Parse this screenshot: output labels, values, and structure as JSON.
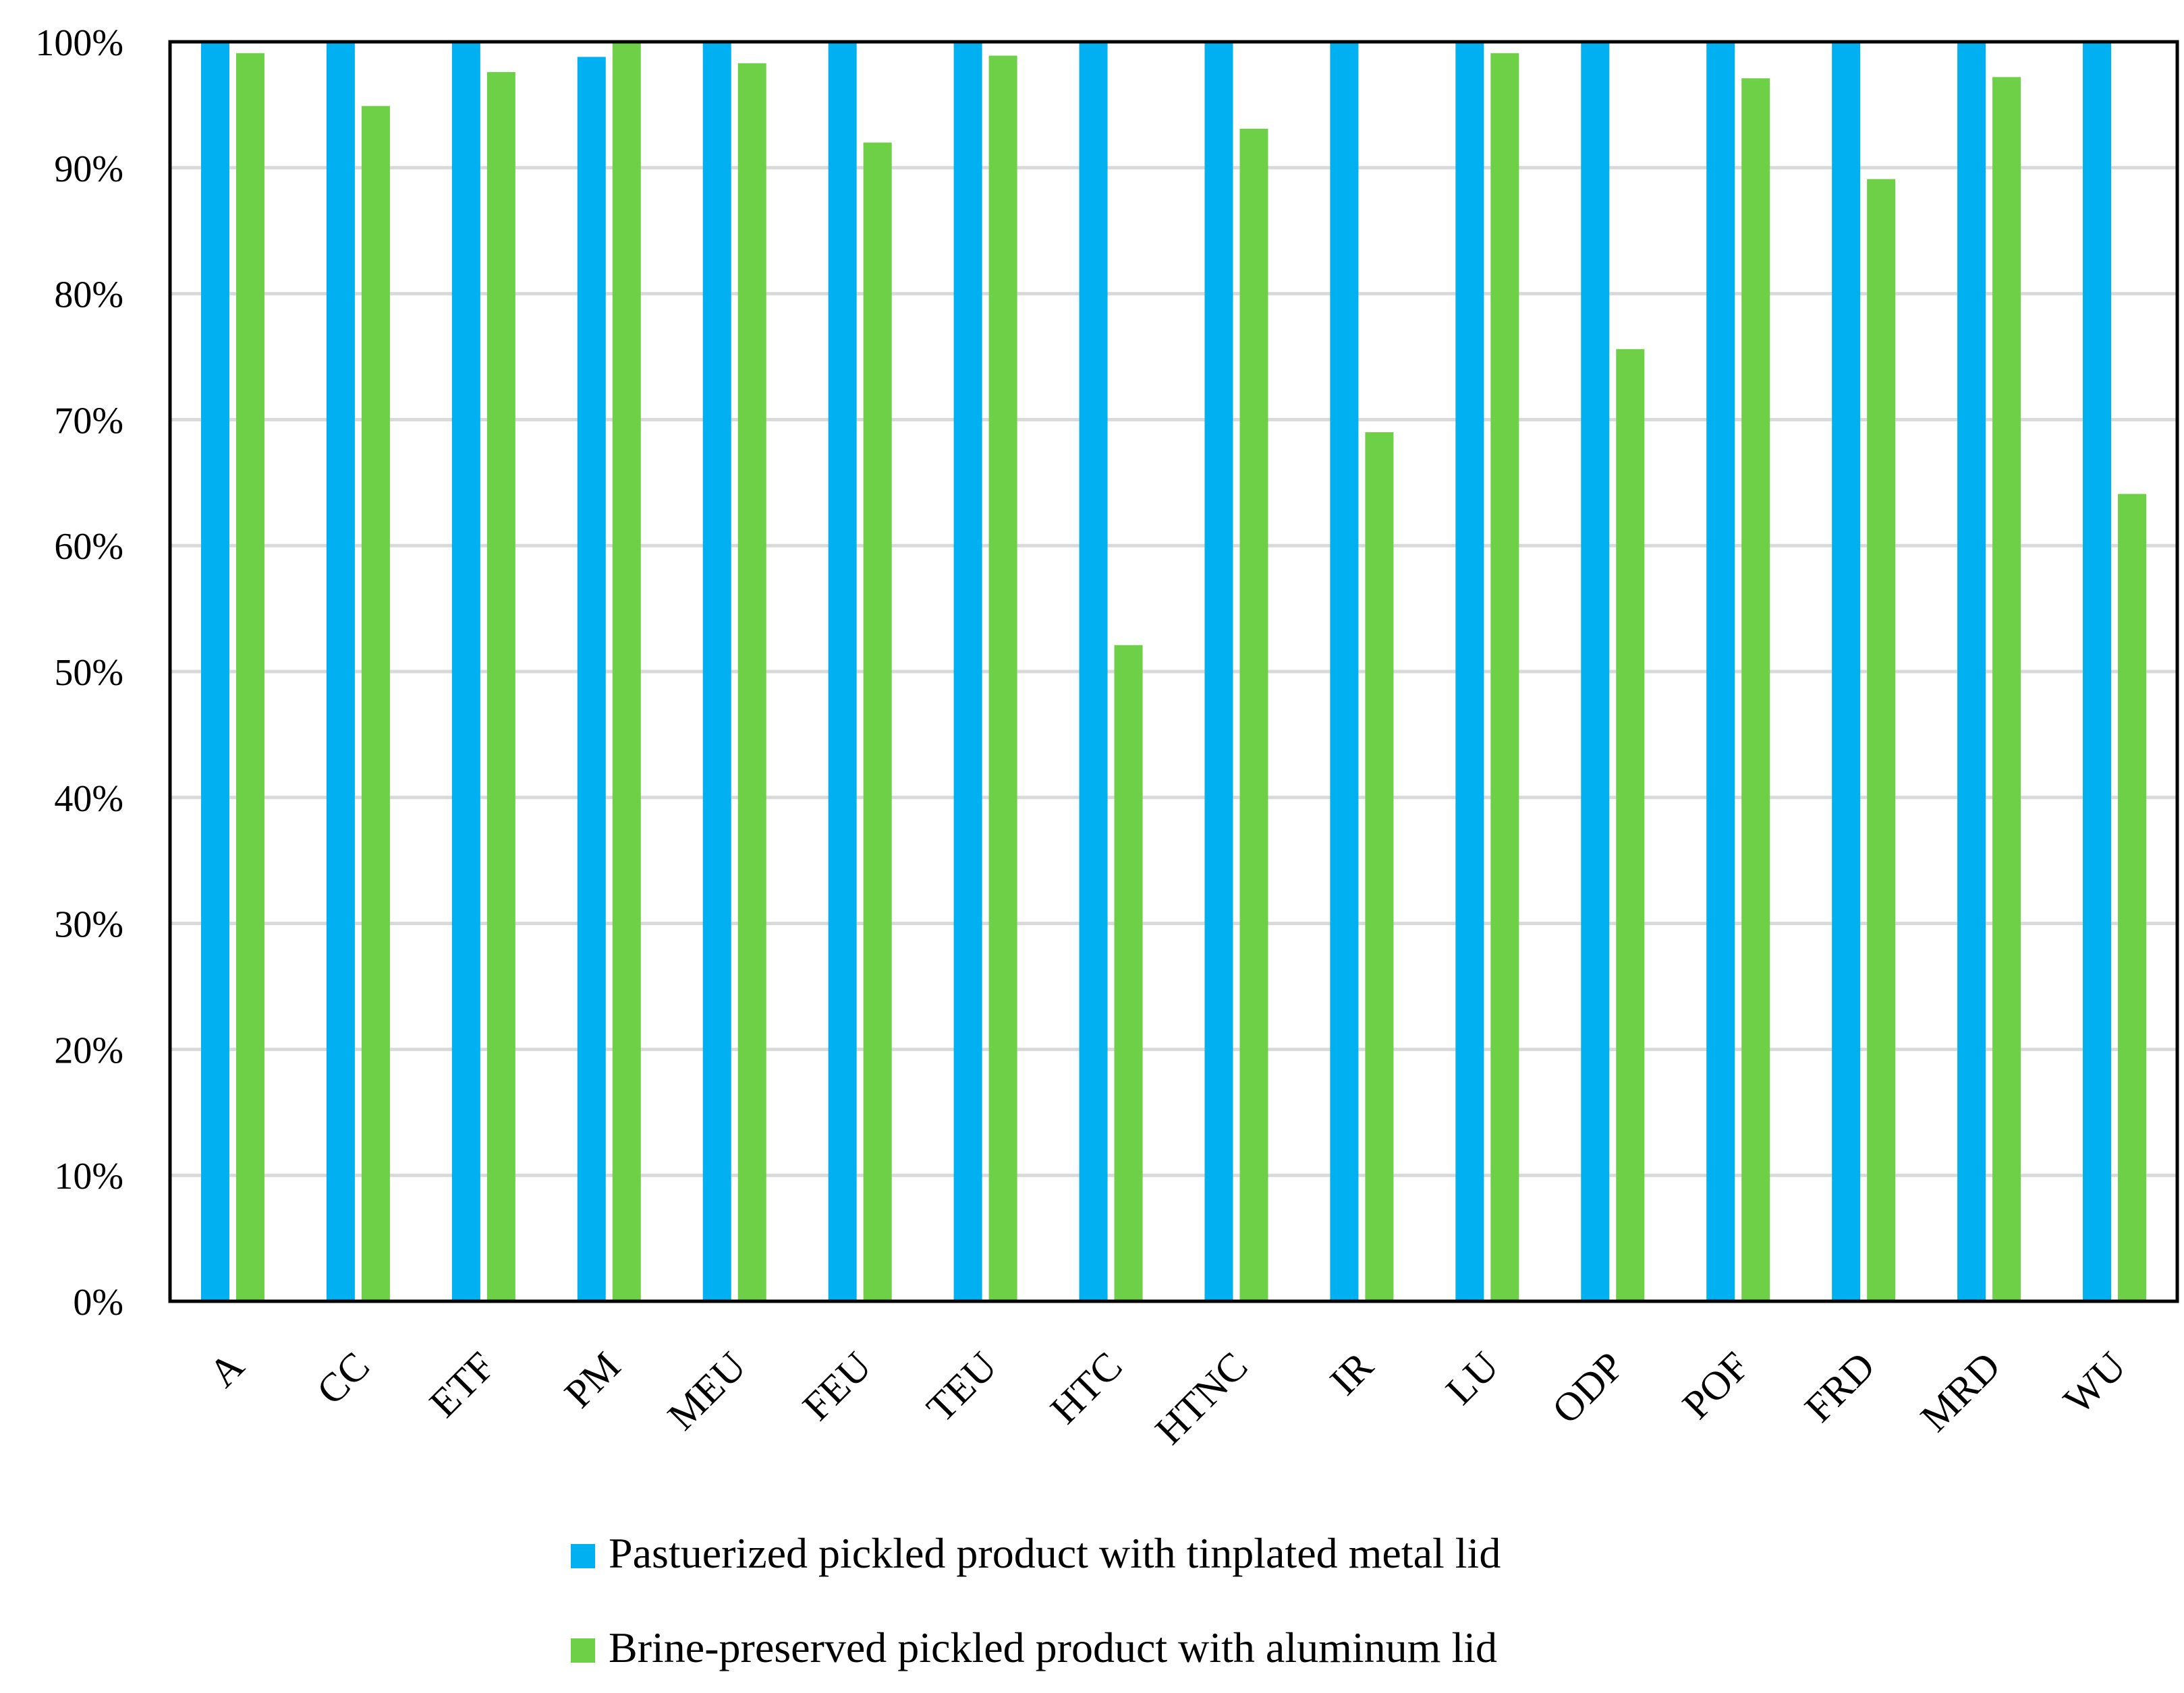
{
  "chart_data": {
    "type": "bar",
    "title": "",
    "xlabel": "",
    "ylabel": "",
    "ylim": [
      0,
      100
    ],
    "y_ticks": [
      "0%",
      "10%",
      "20%",
      "30%",
      "40%",
      "50%",
      "60%",
      "70%",
      "80%",
      "90%",
      "100%"
    ],
    "grid": true,
    "legend_position": "bottom",
    "categories": [
      "A",
      "CC",
      "ETF",
      "PM",
      "MEU",
      "FEU",
      "TEU",
      "HTC",
      "HTNC",
      "IR",
      "LU",
      "ODP",
      "POF",
      "FRD",
      "MRD",
      "WU"
    ],
    "series": [
      {
        "name": "Pastuerized pickled product with tinplated metal lid",
        "color": "#00B0F0",
        "values": [
          100,
          100,
          100,
          98.8,
          100,
          100,
          100,
          100,
          100,
          100,
          100,
          100,
          100,
          100,
          100,
          100
        ]
      },
      {
        "name": "Brine-preserved pickled product with aluminum lid",
        "color": "#6DD046",
        "values": [
          99.1,
          94.9,
          97.6,
          100,
          98.3,
          92,
          98.9,
          52.1,
          93.1,
          69,
          99.1,
          75.6,
          97.1,
          89.1,
          97.2,
          64.1
        ]
      }
    ]
  },
  "legend": {
    "items": [
      "Pastuerized pickled product with tinplated metal lid",
      "Brine-preserved pickled product with aluminum lid"
    ]
  }
}
